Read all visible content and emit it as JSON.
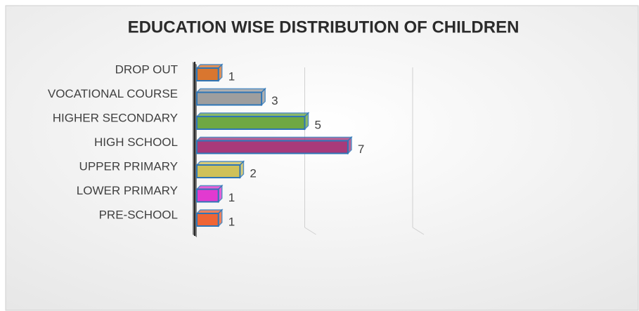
{
  "chart_data": {
    "type": "barh",
    "title": "EDUCATION WISE DISTRIBUTION OF CHILDREN",
    "categories": [
      "DROP OUT",
      "VOCATIONAL COURSE",
      "HIGHER SECONDARY",
      "HIGH SCHOOL",
      "UPPER PRIMARY",
      "LOWER PRIMARY",
      "PRE-SCHOOL"
    ],
    "values": [
      1,
      3,
      5,
      7,
      2,
      1,
      1
    ],
    "colors": [
      "#d9762f",
      "#9e9e9e",
      "#6fa843",
      "#a83a7a",
      "#cfc159",
      "#e23ad0",
      "#ef6535"
    ],
    "edge_color": "#2e75b6",
    "xlim": [
      0,
      10
    ],
    "xticks": [
      0,
      5,
      10
    ],
    "xtick_labels": false,
    "grid": true
  }
}
